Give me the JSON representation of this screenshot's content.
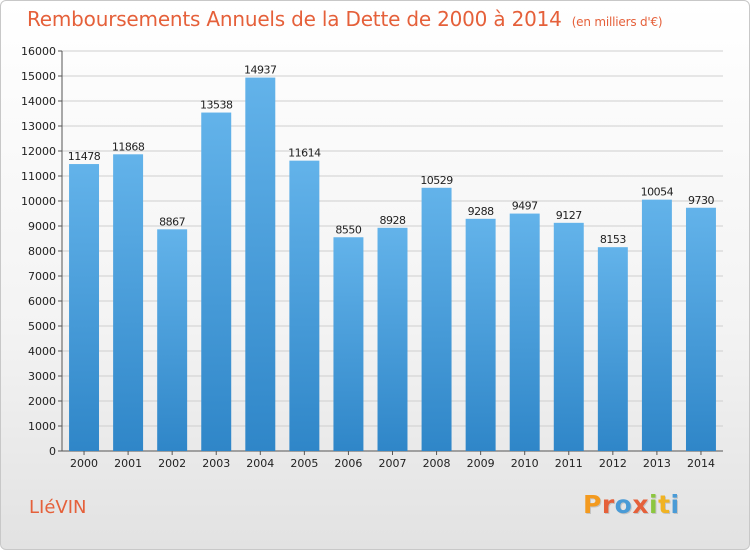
{
  "header": {
    "title": "Remboursements Annuels de la Dette de 2000 à 2014",
    "unit": "(en milliers d'€)"
  },
  "footer": {
    "city": "LIéVIN",
    "logo": "Proxiti"
  },
  "colors": {
    "bar_light": "#63b3ea",
    "bar_dark": "#2f86c8",
    "title": "#e5603a",
    "logo_letters": [
      "#f39a1f",
      "#e5603a",
      "#4a9bd6",
      "#e5603a",
      "#8cc63f",
      "#f0b323",
      "#4a9bd6"
    ]
  },
  "chart_data": {
    "type": "bar",
    "categories": [
      "2000",
      "2001",
      "2002",
      "2003",
      "2004",
      "2005",
      "2006",
      "2007",
      "2008",
      "2009",
      "2010",
      "2011",
      "2012",
      "2013",
      "2014"
    ],
    "values": [
      11478,
      11868,
      8867,
      13538,
      14937,
      11614,
      8550,
      8928,
      10529,
      9288,
      9497,
      9127,
      8153,
      10054,
      9730
    ],
    "data_labels": [
      "11478",
      "11868",
      "8867",
      "13538",
      "14937",
      "11614",
      "8550",
      "8928",
      "10529",
      "9288",
      "9497",
      "9127",
      "8153",
      "10054",
      "9730"
    ],
    "yticks": [
      0,
      1000,
      2000,
      3000,
      4000,
      5000,
      6000,
      7000,
      8000,
      9000,
      10000,
      11000,
      12000,
      13000,
      14000,
      15000,
      16000
    ],
    "ylim": [
      0,
      16000
    ],
    "title": "Remboursements Annuels de la Dette de 2000 à 2014",
    "xlabel": "",
    "ylabel": "",
    "grid": true
  }
}
